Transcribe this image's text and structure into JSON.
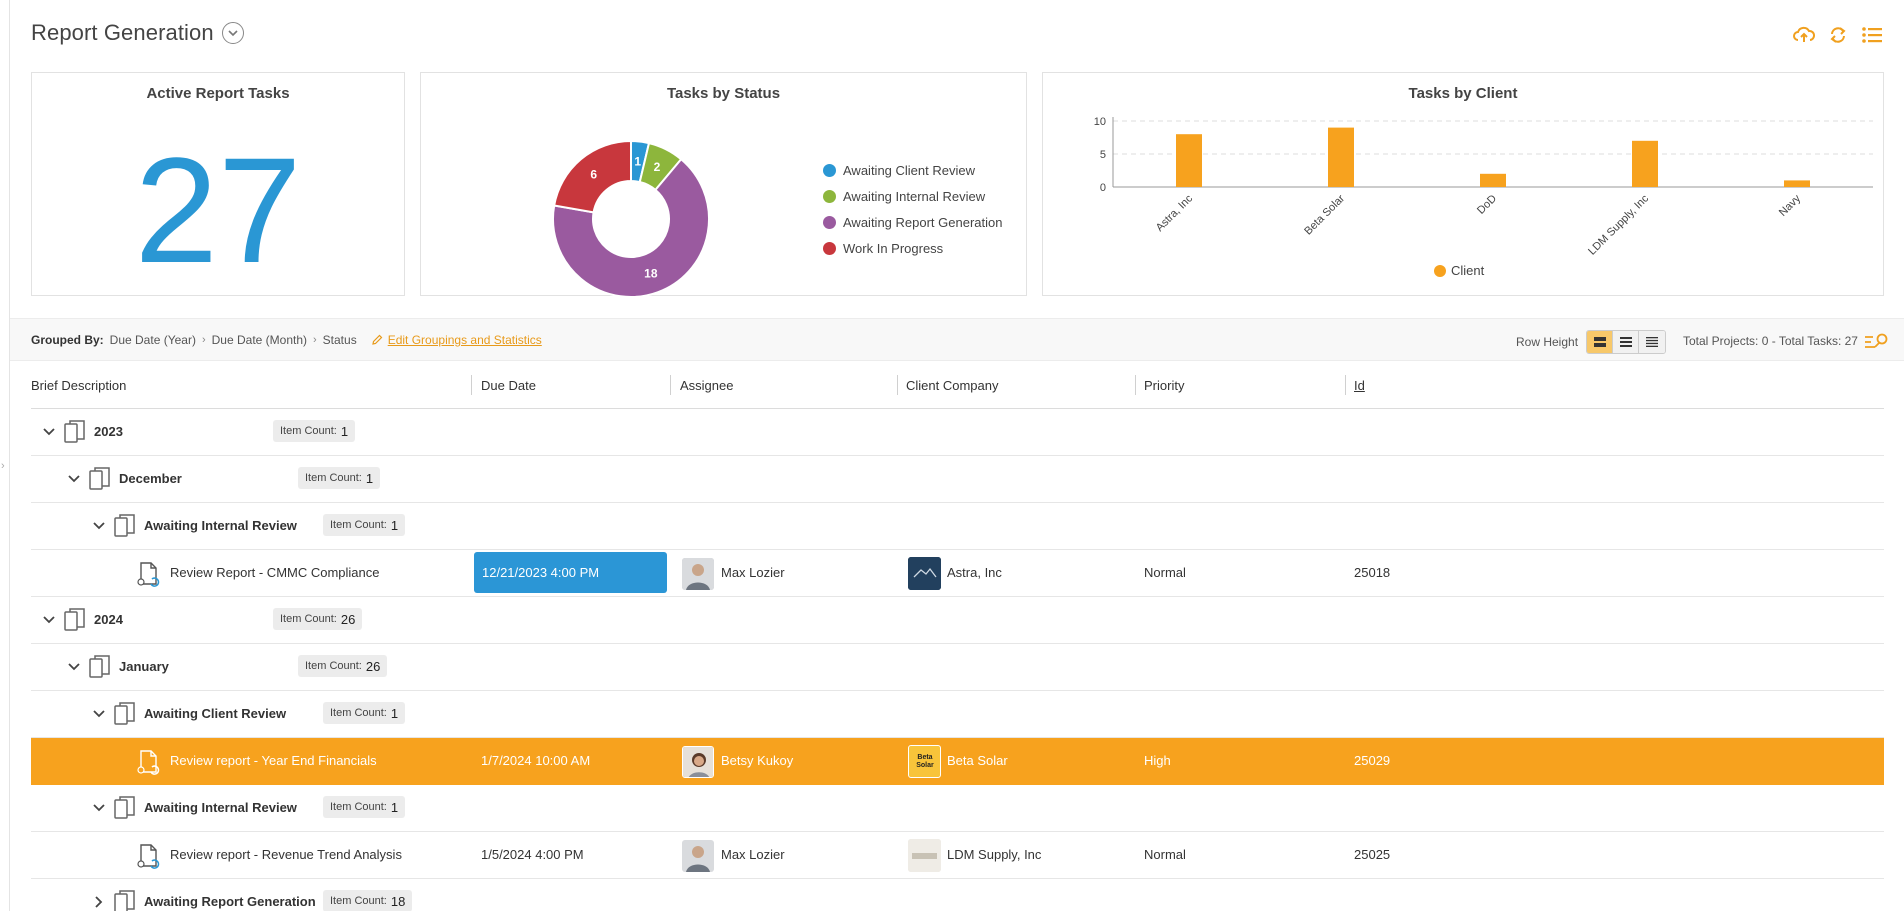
{
  "header": {
    "title": "Report Generation"
  },
  "toolbar": {
    "icons": [
      "cloud-upload-icon",
      "refresh-icon",
      "list-menu-icon"
    ]
  },
  "cards": {
    "active": {
      "title": "Active Report Tasks",
      "value": "27"
    },
    "status": {
      "title": "Tasks by Status"
    },
    "client": {
      "title": "Tasks by Client"
    }
  },
  "chart_data": [
    {
      "type": "pie",
      "title": "Tasks by Status",
      "donut": true,
      "categories": [
        "Awaiting Client Review",
        "Awaiting Internal Review",
        "Awaiting Report Generation",
        "Work In Progress"
      ],
      "values": [
        1,
        2,
        18,
        6
      ],
      "colors": [
        "#2a97d4",
        "#8db63c",
        "#9a5a9f",
        "#c8373d"
      ],
      "legend_position": "right"
    },
    {
      "type": "bar",
      "title": "Tasks by Client",
      "categories": [
        "Astra, Inc",
        "Beta Solar",
        "DoD",
        "LDM Supply, Inc",
        "Navy"
      ],
      "series": [
        {
          "name": "Client",
          "values": [
            8,
            9,
            2,
            7,
            1
          ]
        }
      ],
      "yticks": [
        "0",
        "5",
        "10"
      ],
      "ylim": [
        0,
        10
      ],
      "grid": true,
      "color": "#f7a21e",
      "legend_position": "bottom"
    }
  ],
  "grouping": {
    "label": "Grouped By:",
    "crumbs": [
      "Due Date (Year)",
      "Due Date (Month)",
      "Status"
    ],
    "edit_link": "Edit Groupings and Statistics",
    "row_height_label": "Row Height",
    "totals": "Total Projects: 0 - Total Tasks: 27"
  },
  "columns": [
    "Brief Description",
    "Due Date",
    "Assignee",
    "Client Company",
    "Priority",
    "Id"
  ],
  "rows": [
    {
      "type": "group",
      "level": 0,
      "label": "2023",
      "count_label": "Item Count:",
      "count": "1"
    },
    {
      "type": "group",
      "level": 1,
      "label": "December",
      "count_label": "Item Count:",
      "count": "1"
    },
    {
      "type": "group",
      "level": 2,
      "label": "Awaiting Internal Review",
      "count_label": "Item Count:",
      "count": "1"
    },
    {
      "type": "task",
      "desc": "Review Report - CMMC Compliance",
      "due": "12/21/2023  4:00 PM",
      "assignee": "Max Lozier",
      "client": "Astra, Inc",
      "priority": "Normal",
      "id": "25018"
    },
    {
      "type": "group",
      "level": 0,
      "label": "2024",
      "count_label": "Item Count:",
      "count": "26"
    },
    {
      "type": "group",
      "level": 1,
      "label": "January",
      "count_label": "Item Count:",
      "count": "26"
    },
    {
      "type": "group",
      "level": 2,
      "label": "Awaiting Client Review",
      "count_label": "Item Count:",
      "count": "1"
    },
    {
      "type": "task",
      "desc": "Review report - Year End Financials",
      "due": "1/7/2024  10:00 AM",
      "assignee": "Betsy Kukoy",
      "client": "Beta Solar",
      "client_logo_text": "Beta Solar",
      "priority": "High",
      "id": "25029"
    },
    {
      "type": "group",
      "level": 2,
      "label": "Awaiting Internal Review",
      "count_label": "Item Count:",
      "count": "1"
    },
    {
      "type": "task",
      "desc": "Review report - Revenue Trend Analysis",
      "due": "1/5/2024  4:00 PM",
      "assignee": "Max Lozier",
      "client": "LDM Supply, Inc",
      "priority": "Normal",
      "id": "25025"
    },
    {
      "type": "group",
      "level": 2,
      "label": "Awaiting Report Generation",
      "count_label": "Item Count:",
      "count": "18"
    }
  ]
}
